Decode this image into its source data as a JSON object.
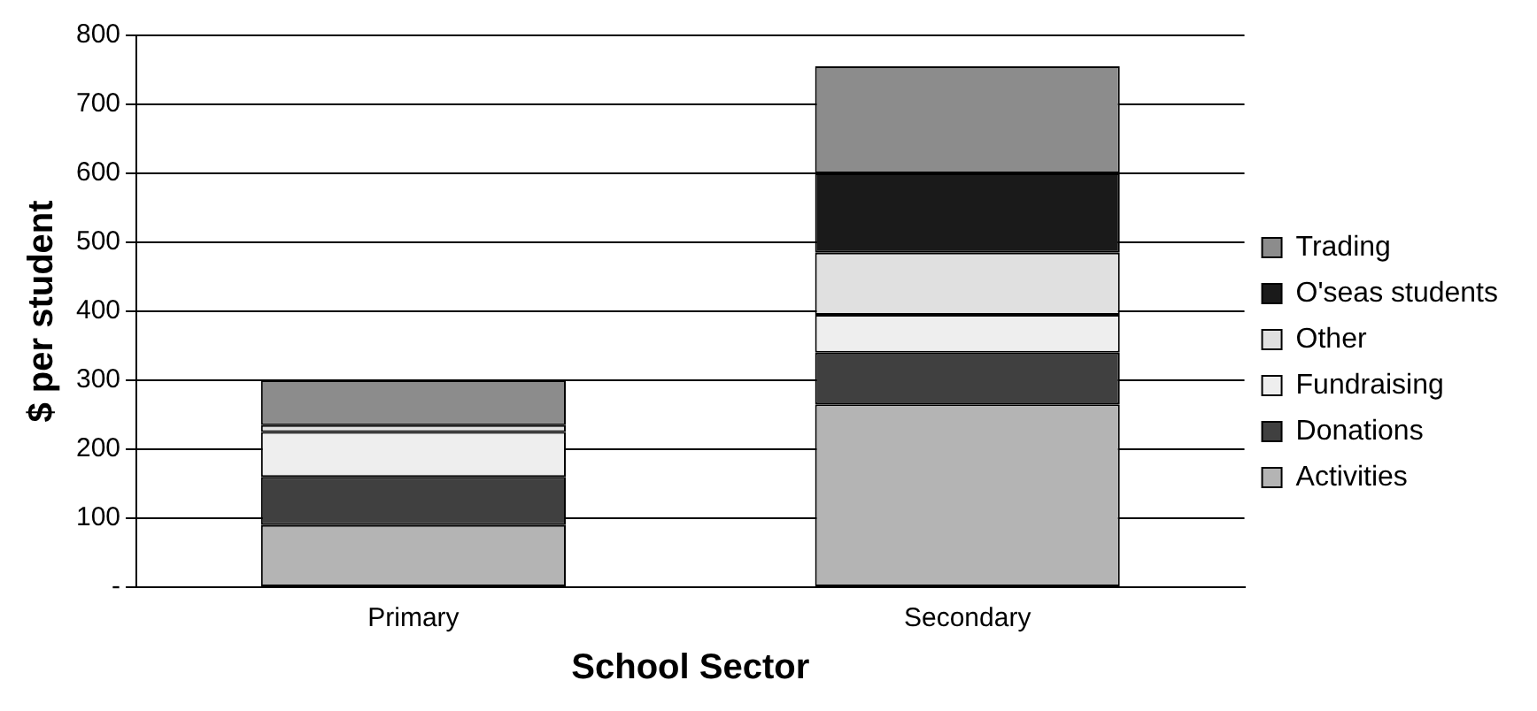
{
  "chart_data": {
    "type": "bar",
    "stacked": true,
    "xlabel": "School Sector",
    "ylabel": "$ per student",
    "categories": [
      "Primary",
      "Secondary"
    ],
    "series": [
      {
        "name": "Activities",
        "color": "#b4b4b4",
        "values": [
          90,
          265
        ]
      },
      {
        "name": "Donations",
        "color": "#404040",
        "values": [
          70,
          75
        ]
      },
      {
        "name": "Fundraising",
        "color": "#eeeeee",
        "values": [
          65,
          55
        ]
      },
      {
        "name": "Other",
        "color": "#e0e0e0",
        "values": [
          10,
          90
        ]
      },
      {
        "name": "O'seas students",
        "color": "#1a1a1a",
        "values": [
          0,
          115
        ]
      },
      {
        "name": "Trading",
        "color": "#8c8c8c",
        "values": [
          65,
          155
        ]
      }
    ],
    "ylim": [
      0,
      800
    ],
    "yticks": [
      {
        "value": 0,
        "label": "-"
      },
      100,
      200,
      300,
      400,
      500,
      600,
      700,
      800
    ],
    "grid": "y",
    "legend": "right"
  }
}
